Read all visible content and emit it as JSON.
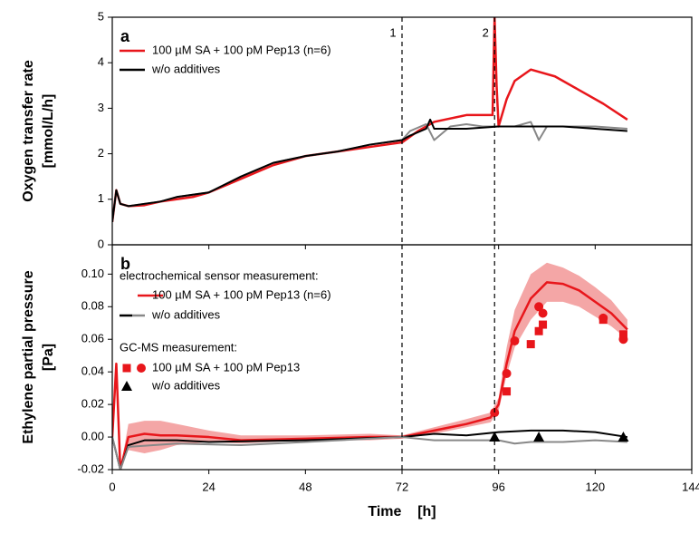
{
  "chart_data": [
    {
      "type": "line",
      "panel_label": "a",
      "ylabel": [
        "Oxygen transfer rate",
        "[mmol/L/h]"
      ],
      "xlim": [
        0,
        144
      ],
      "xticks": [
        0,
        24,
        48,
        72,
        96,
        120,
        144
      ],
      "xtick_labels": false,
      "ylim": [
        0,
        5
      ],
      "yticks": [
        0,
        1,
        2,
        3,
        4,
        5
      ],
      "annotations": [
        {
          "x": 72,
          "label": "1"
        },
        {
          "x": 95,
          "label": "2"
        }
      ],
      "series": [
        {
          "type": "line",
          "name": "100 µM SA + 100 pM Pep13 (n=6)",
          "color": "#e8161b",
          "x": [
            0,
            1,
            2,
            4,
            8,
            12,
            16,
            20,
            24,
            32,
            40,
            48,
            56,
            64,
            72,
            76,
            80,
            88,
            94.5,
            95,
            95.5,
            96,
            98,
            100,
            104,
            110,
            116,
            122,
            128
          ],
          "values": [
            0.5,
            1.2,
            0.9,
            0.85,
            0.87,
            0.95,
            1.0,
            1.05,
            1.15,
            1.45,
            1.75,
            1.95,
            2.05,
            2.15,
            2.25,
            2.5,
            2.7,
            2.85,
            2.85,
            5.0,
            3.5,
            2.6,
            3.2,
            3.6,
            3.85,
            3.7,
            3.4,
            3.1,
            2.75
          ]
        },
        {
          "type": "line",
          "color": "#888888",
          "x": [
            0,
            1,
            2,
            4,
            8,
            12,
            16,
            24,
            32,
            40,
            48,
            56,
            64,
            72,
            74,
            78,
            80,
            84,
            88,
            92,
            96,
            100,
            104,
            106,
            108,
            112,
            120,
            128
          ],
          "values": [
            0.5,
            1.2,
            0.9,
            0.85,
            0.9,
            0.95,
            1.05,
            1.15,
            1.5,
            1.8,
            1.95,
            2.05,
            2.2,
            2.3,
            2.5,
            2.65,
            2.3,
            2.6,
            2.65,
            2.6,
            2.6,
            2.6,
            2.7,
            2.3,
            2.6,
            2.6,
            2.6,
            2.55
          ]
        },
        {
          "type": "line",
          "name": "w/o additives",
          "color": "#000000",
          "x": [
            0,
            1,
            2,
            4,
            8,
            12,
            16,
            24,
            32,
            40,
            48,
            56,
            64,
            72,
            74,
            78,
            79,
            80,
            88,
            96,
            104,
            112,
            120,
            128
          ],
          "values": [
            0.5,
            1.2,
            0.9,
            0.85,
            0.9,
            0.95,
            1.05,
            1.15,
            1.5,
            1.8,
            1.95,
            2.05,
            2.2,
            2.3,
            2.4,
            2.55,
            2.75,
            2.55,
            2.55,
            2.6,
            2.6,
            2.6,
            2.55,
            2.5
          ]
        }
      ]
    },
    {
      "type": "line",
      "panel_label": "b",
      "ylabel": [
        "Ethylene partial pressure",
        "[Pa]"
      ],
      "xlabel": "Time    [h]",
      "xlim": [
        0,
        144
      ],
      "xticks": [
        0,
        24,
        48,
        72,
        96,
        120,
        144
      ],
      "xtick_labels": true,
      "ylim": [
        -0.02,
        0.118
      ],
      "yticks": [
        -0.02,
        {
          "value": 0,
          "label": "0.00"
        },
        0.02,
        0.04,
        0.06,
        0.08,
        {
          "value": 0.1,
          "label": "0.10"
        }
      ],
      "annotations": [
        {
          "x": 72
        },
        {
          "x": 95
        }
      ],
      "legend_headings": [
        "electrochemical sensor measurement:",
        "GC-MS measurement:"
      ],
      "series": [
        {
          "type": "line",
          "name": "100 µM SA + 100 pM Pep13 (n=6)",
          "color": "#e8161b",
          "band_color": "#f4a6a6",
          "x": [
            0,
            1,
            2,
            4,
            8,
            12,
            16,
            24,
            32,
            48,
            64,
            72,
            80,
            88,
            94,
            96,
            98,
            100,
            104,
            108,
            112,
            116,
            120,
            124,
            128
          ],
          "values": [
            0,
            0.045,
            -0.02,
            0.0,
            0.002,
            0.001,
            0.001,
            0.0,
            -0.002,
            -0.001,
            0,
            0,
            0.004,
            0.008,
            0.012,
            0.02,
            0.045,
            0.065,
            0.085,
            0.095,
            0.094,
            0.09,
            0.083,
            0.076,
            0.066
          ],
          "upper": [
            0,
            0.045,
            -0.02,
            0.008,
            0.01,
            0.01,
            0.008,
            0.004,
            0.001,
            0.001,
            0.002,
            0.001,
            0.006,
            0.011,
            0.015,
            0.024,
            0.055,
            0.078,
            0.1,
            0.107,
            0.104,
            0.099,
            0.092,
            0.084,
            0.072
          ],
          "lower": [
            0,
            0.045,
            -0.02,
            -0.008,
            -0.01,
            -0.008,
            -0.005,
            -0.003,
            -0.004,
            -0.002,
            -0.002,
            -0.001,
            0.002,
            0.006,
            0.009,
            0.016,
            0.038,
            0.055,
            0.072,
            0.083,
            0.083,
            0.08,
            0.074,
            0.068,
            0.06
          ]
        },
        {
          "type": "line",
          "name": "w/o additives",
          "color": "#000000",
          "x": [
            0,
            2,
            4,
            8,
            16,
            24,
            48,
            72,
            80,
            88,
            96,
            104,
            112,
            120,
            128
          ],
          "values": [
            0,
            -0.02,
            -0.005,
            -0.002,
            -0.002,
            -0.003,
            -0.002,
            0,
            0.002,
            0.001,
            0.003,
            0.004,
            0.004,
            0.003,
            0.0
          ]
        },
        {
          "type": "line",
          "color": "#888888",
          "x": [
            0,
            2,
            4,
            16,
            32,
            48,
            72,
            80,
            88,
            96,
            100,
            104,
            112,
            120,
            128
          ],
          "values": [
            0,
            -0.02,
            -0.006,
            -0.004,
            -0.005,
            -0.003,
            0,
            -0.002,
            -0.002,
            -0.002,
            -0.004,
            -0.003,
            -0.003,
            -0.002,
            -0.003
          ]
        },
        {
          "type": "scatter",
          "marker": "square",
          "name": "100 µM SA + 100 pM Pep13",
          "color": "#e8161b",
          "x": [
            98,
            104,
            106,
            107,
            122,
            127
          ],
          "values": [
            0.028,
            0.057,
            0.065,
            0.069,
            0.072,
            0.063
          ]
        },
        {
          "type": "scatter",
          "marker": "circle",
          "color": "#e8161b",
          "x": [
            95,
            98,
            100,
            106,
            107,
            122,
            127
          ],
          "values": [
            0.015,
            0.039,
            0.059,
            0.08,
            0.076,
            0.073,
            0.06
          ]
        },
        {
          "type": "scatter",
          "marker": "triangle",
          "name": "w/o additives",
          "color": "#000000",
          "x": [
            95,
            106,
            127
          ],
          "values": [
            0.0,
            0.0,
            0.0
          ]
        }
      ]
    }
  ]
}
